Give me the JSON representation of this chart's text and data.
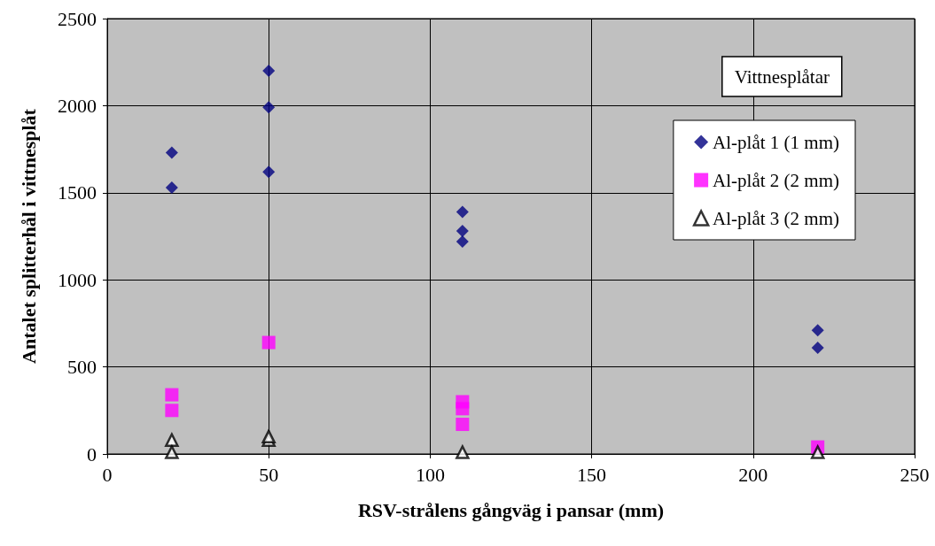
{
  "chart_data": {
    "type": "scatter",
    "xlabel": "RSV-strålens gångväg i pansar (mm)",
    "ylabel": "Antalet splitterhål i vittnesplåt",
    "legend_title": "Vittnesplåtar",
    "xlim": [
      0,
      250
    ],
    "xticks": [
      0,
      50,
      100,
      150,
      200,
      250
    ],
    "ylim": [
      0,
      2500
    ],
    "yticks": [
      0,
      500,
      1000,
      1500,
      2000,
      2500
    ],
    "grid": true,
    "legend": "top right",
    "series": [
      {
        "name": "Al-plåt 1 (1 mm)",
        "color": "#000080",
        "marker": "diamond",
        "x": [
          20,
          20,
          50,
          50,
          50,
          110,
          110,
          110,
          220,
          220
        ],
        "values": [
          1730,
          1530,
          2200,
          1990,
          1620,
          1390,
          1280,
          1220,
          710,
          610
        ]
      },
      {
        "name": "Al-plåt 2 (2 mm)",
        "color": "#ff00ff",
        "marker": "square",
        "x": [
          20,
          20,
          50,
          110,
          110,
          110,
          220
        ],
        "values": [
          340,
          250,
          640,
          300,
          260,
          170,
          40
        ]
      },
      {
        "name": "Al-plåt 3 (2 mm)",
        "color": "#000000",
        "marker": "triangle",
        "x": [
          20,
          20,
          50,
          50,
          110,
          220
        ],
        "values": [
          80,
          10,
          80,
          100,
          10,
          10
        ]
      }
    ]
  }
}
